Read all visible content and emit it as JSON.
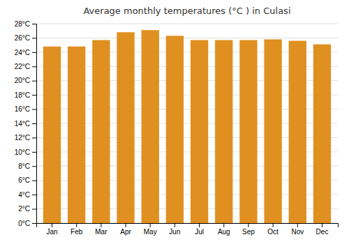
{
  "chart_data": {
    "type": "bar",
    "title": "Average monthly temperatures (°C ) in Culasi",
    "categories": [
      "Jan",
      "Feb",
      "Mar",
      "Apr",
      "May",
      "Jun",
      "Jul",
      "Aug",
      "Sep",
      "Oct",
      "Nov",
      "Dec"
    ],
    "values": [
      24.8,
      24.8,
      25.7,
      26.8,
      27.1,
      26.3,
      25.7,
      25.7,
      25.7,
      25.8,
      25.6,
      25.1
    ],
    "color": "#E09020",
    "ylim": [
      0,
      28
    ],
    "yticks": [
      {
        "value": 0,
        "label": "0°C"
      },
      {
        "value": 2,
        "label": "2°C"
      },
      {
        "value": 4,
        "label": "4°C"
      },
      {
        "value": 6,
        "label": "6°C"
      },
      {
        "value": 8,
        "label": "8°C"
      },
      {
        "value": 10,
        "label": "10°C"
      },
      {
        "value": 12,
        "label": "12°C"
      },
      {
        "value": 14,
        "label": "14°C"
      },
      {
        "value": 16,
        "label": "16°C"
      },
      {
        "value": 18,
        "label": "18°C"
      },
      {
        "value": 20,
        "label": "20°C"
      },
      {
        "value": 22,
        "label": "22°C"
      },
      {
        "value": 24,
        "label": "24°C"
      },
      {
        "value": 26,
        "label": "26°C"
      },
      {
        "value": 28,
        "label": "28°C"
      }
    ],
    "grid": true
  }
}
